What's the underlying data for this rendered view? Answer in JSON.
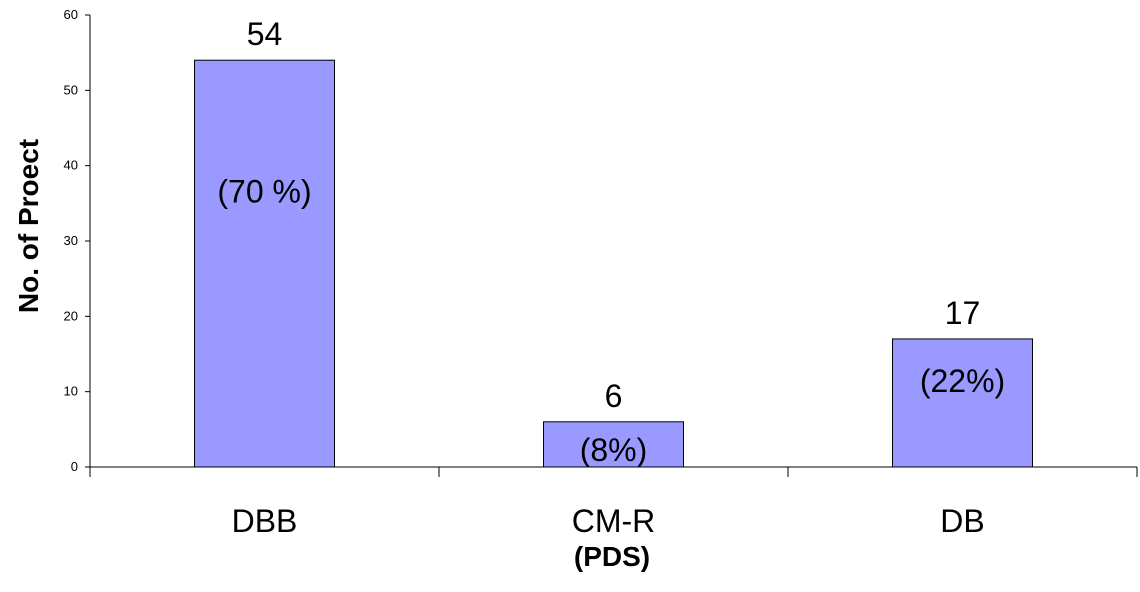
{
  "chart_data": {
    "type": "bar",
    "categories": [
      "DBB",
      "CM-R",
      "DB"
    ],
    "values": [
      54,
      6,
      17
    ],
    "value_labels": [
      "54",
      "6",
      "17"
    ],
    "percent_labels": [
      "(70 %)",
      "(8%)",
      "(22%)"
    ],
    "title": "",
    "xlabel": "(PDS)",
    "ylabel": "No. of Proect",
    "ylim": [
      0,
      60
    ],
    "yticks": [
      0,
      10,
      20,
      30,
      40,
      50,
      60
    ],
    "grid": false,
    "legend": "none",
    "colors": {
      "bar_fill": "#9999ff",
      "bar_stroke": "#000000",
      "axis": "#000000"
    }
  }
}
